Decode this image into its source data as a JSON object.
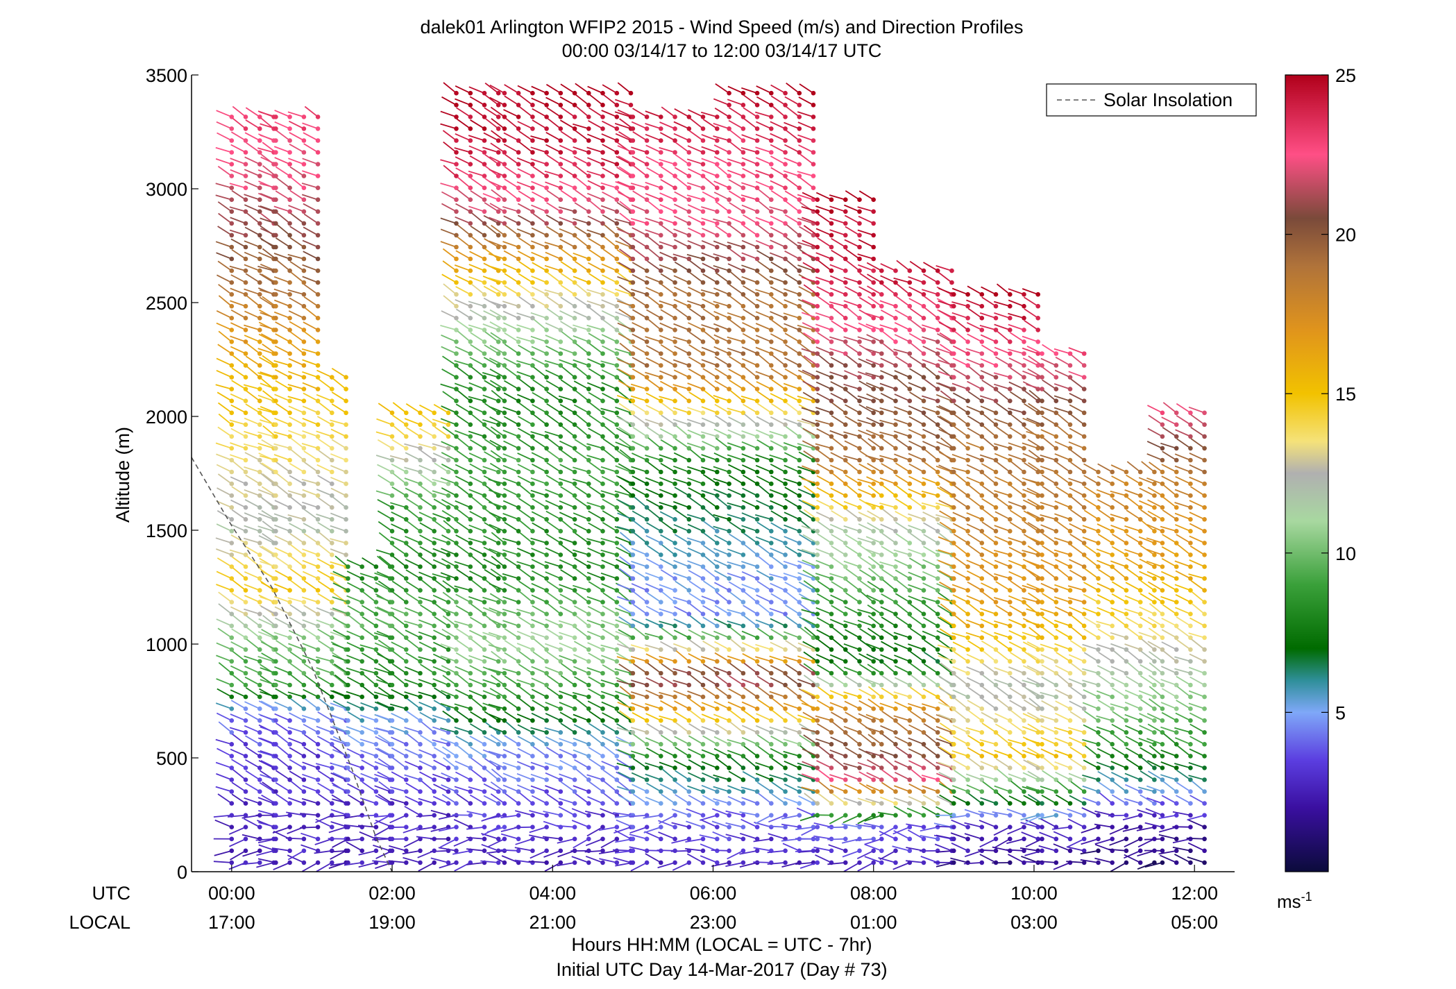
{
  "chart_data": {
    "type": "wind-barb-profile",
    "title": "dalek01 Arlington WFIP2 2015 - Wind Speed (m/s) and Direction Profiles",
    "subtitle": "00:00 03/14/17 to 12:00 03/14/17  UTC",
    "ylabel": "Altitude (m)",
    "xlabel": "Hours HH:MM  (LOCAL = UTC - 7hr)",
    "xlabel2": "Initial UTC Day 14-Mar-2017 (Day # 73)",
    "utc_row_label": "UTC",
    "local_row_label": "LOCAL",
    "ylim": [
      0,
      3500
    ],
    "xlim_hours": [
      -0.5,
      12.5
    ],
    "yticks": [
      0,
      500,
      1000,
      1500,
      2000,
      2500,
      3000,
      3500
    ],
    "xticks_utc": [
      "00:00",
      "02:00",
      "04:00",
      "06:00",
      "08:00",
      "10:00",
      "12:00"
    ],
    "xticks_local": [
      "17:00",
      "19:00",
      "21:00",
      "23:00",
      "01:00",
      "03:00",
      "05:00"
    ],
    "xtick_hours": [
      0,
      2,
      4,
      6,
      8,
      10,
      12
    ],
    "legend": {
      "label": "Solar Insolation",
      "placement": "top-right"
    },
    "colorbar": {
      "min": 0,
      "max": 25,
      "ticks": [
        5,
        10,
        15,
        20,
        25
      ],
      "unit_label": "ms",
      "unit_exponent": "-1",
      "stops": [
        {
          "v": 0,
          "c": "#0b0b3b"
        },
        {
          "v": 2,
          "c": "#3a0fa0"
        },
        {
          "v": 3.5,
          "c": "#5b3ee0"
        },
        {
          "v": 5,
          "c": "#7fa8f8"
        },
        {
          "v": 6,
          "c": "#2f8f9a"
        },
        {
          "v": 7,
          "c": "#006b00"
        },
        {
          "v": 9,
          "c": "#3aa03a"
        },
        {
          "v": 11,
          "c": "#a8d8a0"
        },
        {
          "v": 12.5,
          "c": "#b0b0b0"
        },
        {
          "v": 13.5,
          "c": "#f5e27a"
        },
        {
          "v": 15,
          "c": "#f2c200"
        },
        {
          "v": 17,
          "c": "#e0941c"
        },
        {
          "v": 19,
          "c": "#b0733a"
        },
        {
          "v": 20.5,
          "c": "#7a4a3a"
        },
        {
          "v": 22.5,
          "c": "#ff4f86"
        },
        {
          "v": 25,
          "c": "#b0001a"
        }
      ]
    },
    "series": [
      {
        "hour_from": 0.0,
        "hour_to": 0.55,
        "top_m": 3320,
        "profile": "A"
      },
      {
        "hour_from": 0.55,
        "hour_to": 1.25,
        "top_m": 3330,
        "profile": "A"
      },
      {
        "hour_from": 1.25,
        "hour_to": 1.45,
        "top_m": 2180,
        "profile": "A"
      },
      {
        "hour_from": 1.45,
        "hour_to": 2.0,
        "top_m": 1340,
        "profile": "B"
      },
      {
        "hour_from": 2.0,
        "hour_to": 2.8,
        "top_m": 2040,
        "profile": "B"
      },
      {
        "hour_from": 2.8,
        "hour_to": 3.4,
        "top_m": 3460,
        "profile": "C"
      },
      {
        "hour_from": 3.4,
        "hour_to": 5.0,
        "top_m": 3420,
        "profile": "C"
      },
      {
        "hour_from": 5.0,
        "hour_to": 6.2,
        "top_m": 3340,
        "profile": "D"
      },
      {
        "hour_from": 6.2,
        "hour_to": 7.3,
        "top_m": 3470,
        "profile": "D"
      },
      {
        "hour_from": 7.3,
        "hour_to": 8.1,
        "top_m": 3000,
        "profile": "E"
      },
      {
        "hour_from": 8.1,
        "hour_to": 9.0,
        "top_m": 2650,
        "profile": "E"
      },
      {
        "hour_from": 9.0,
        "hour_to": 10.1,
        "top_m": 2540,
        "profile": "F"
      },
      {
        "hour_from": 10.1,
        "hour_to": 10.8,
        "top_m": 2320,
        "profile": "F"
      },
      {
        "hour_from": 10.8,
        "hour_to": 11.6,
        "top_m": 1780,
        "profile": "G"
      },
      {
        "hour_from": 11.6,
        "hour_to": 12.2,
        "top_m": 2050,
        "profile": "G"
      }
    ],
    "profiles": {
      "A": [
        [
          0,
          2.5
        ],
        [
          300,
          3
        ],
        [
          550,
          3.5
        ],
        [
          700,
          4.5
        ],
        [
          800,
          9
        ],
        [
          1000,
          10
        ],
        [
          1250,
          15
        ],
        [
          1500,
          12
        ],
        [
          1900,
          14
        ],
        [
          2250,
          16
        ],
        [
          2550,
          19
        ],
        [
          3000,
          22
        ],
        [
          3320,
          23
        ]
      ],
      "B": [
        [
          0,
          2.5
        ],
        [
          300,
          3
        ],
        [
          550,
          4.5
        ],
        [
          650,
          5
        ],
        [
          800,
          8
        ],
        [
          1100,
          9.5
        ],
        [
          1350,
          8
        ],
        [
          1600,
          9
        ],
        [
          2050,
          16
        ]
      ],
      "C": [
        [
          0,
          2.5
        ],
        [
          300,
          3.5
        ],
        [
          550,
          5
        ],
        [
          700,
          8
        ],
        [
          1000,
          11
        ],
        [
          1300,
          8
        ],
        [
          1800,
          9
        ],
        [
          2100,
          8
        ],
        [
          2300,
          10
        ],
        [
          2500,
          13
        ],
        [
          2700,
          17
        ],
        [
          2850,
          21
        ],
        [
          3100,
          24
        ],
        [
          3460,
          25
        ]
      ],
      "D": [
        [
          0,
          2.5
        ],
        [
          250,
          4
        ],
        [
          500,
          8
        ],
        [
          850,
          22
        ],
        [
          1100,
          4.5
        ],
        [
          1300,
          5
        ],
        [
          1800,
          8
        ],
        [
          2200,
          19
        ],
        [
          2500,
          19
        ],
        [
          2800,
          22
        ],
        [
          3100,
          23
        ],
        [
          3470,
          25
        ]
      ],
      "E": [
        [
          0,
          2.5
        ],
        [
          200,
          4
        ],
        [
          400,
          22
        ],
        [
          700,
          18
        ],
        [
          900,
          7
        ],
        [
          1200,
          9
        ],
        [
          1500,
          12
        ],
        [
          1800,
          19
        ],
        [
          2200,
          21
        ],
        [
          2600,
          24
        ],
        [
          3000,
          25
        ]
      ],
      "F": [
        [
          0,
          1.5
        ],
        [
          200,
          3
        ],
        [
          500,
          15
        ],
        [
          800,
          12
        ],
        [
          1100,
          16
        ],
        [
          1500,
          18
        ],
        [
          1900,
          19
        ],
        [
          2200,
          22
        ],
        [
          2540,
          25
        ]
      ],
      "G": [
        [
          0,
          1
        ],
        [
          200,
          2
        ],
        [
          500,
          8
        ],
        [
          900,
          12
        ],
        [
          1300,
          16
        ],
        [
          1700,
          18
        ],
        [
          2050,
          23
        ]
      ]
    },
    "barb_direction_deg_typical": 240,
    "solar_insolation_curve": [
      [
        -0.5,
        1820
      ],
      [
        0,
        1520
      ],
      [
        0.5,
        1250
      ],
      [
        1.0,
        900
      ],
      [
        1.5,
        450
      ],
      [
        1.8,
        150
      ],
      [
        2.0,
        0
      ]
    ]
  }
}
